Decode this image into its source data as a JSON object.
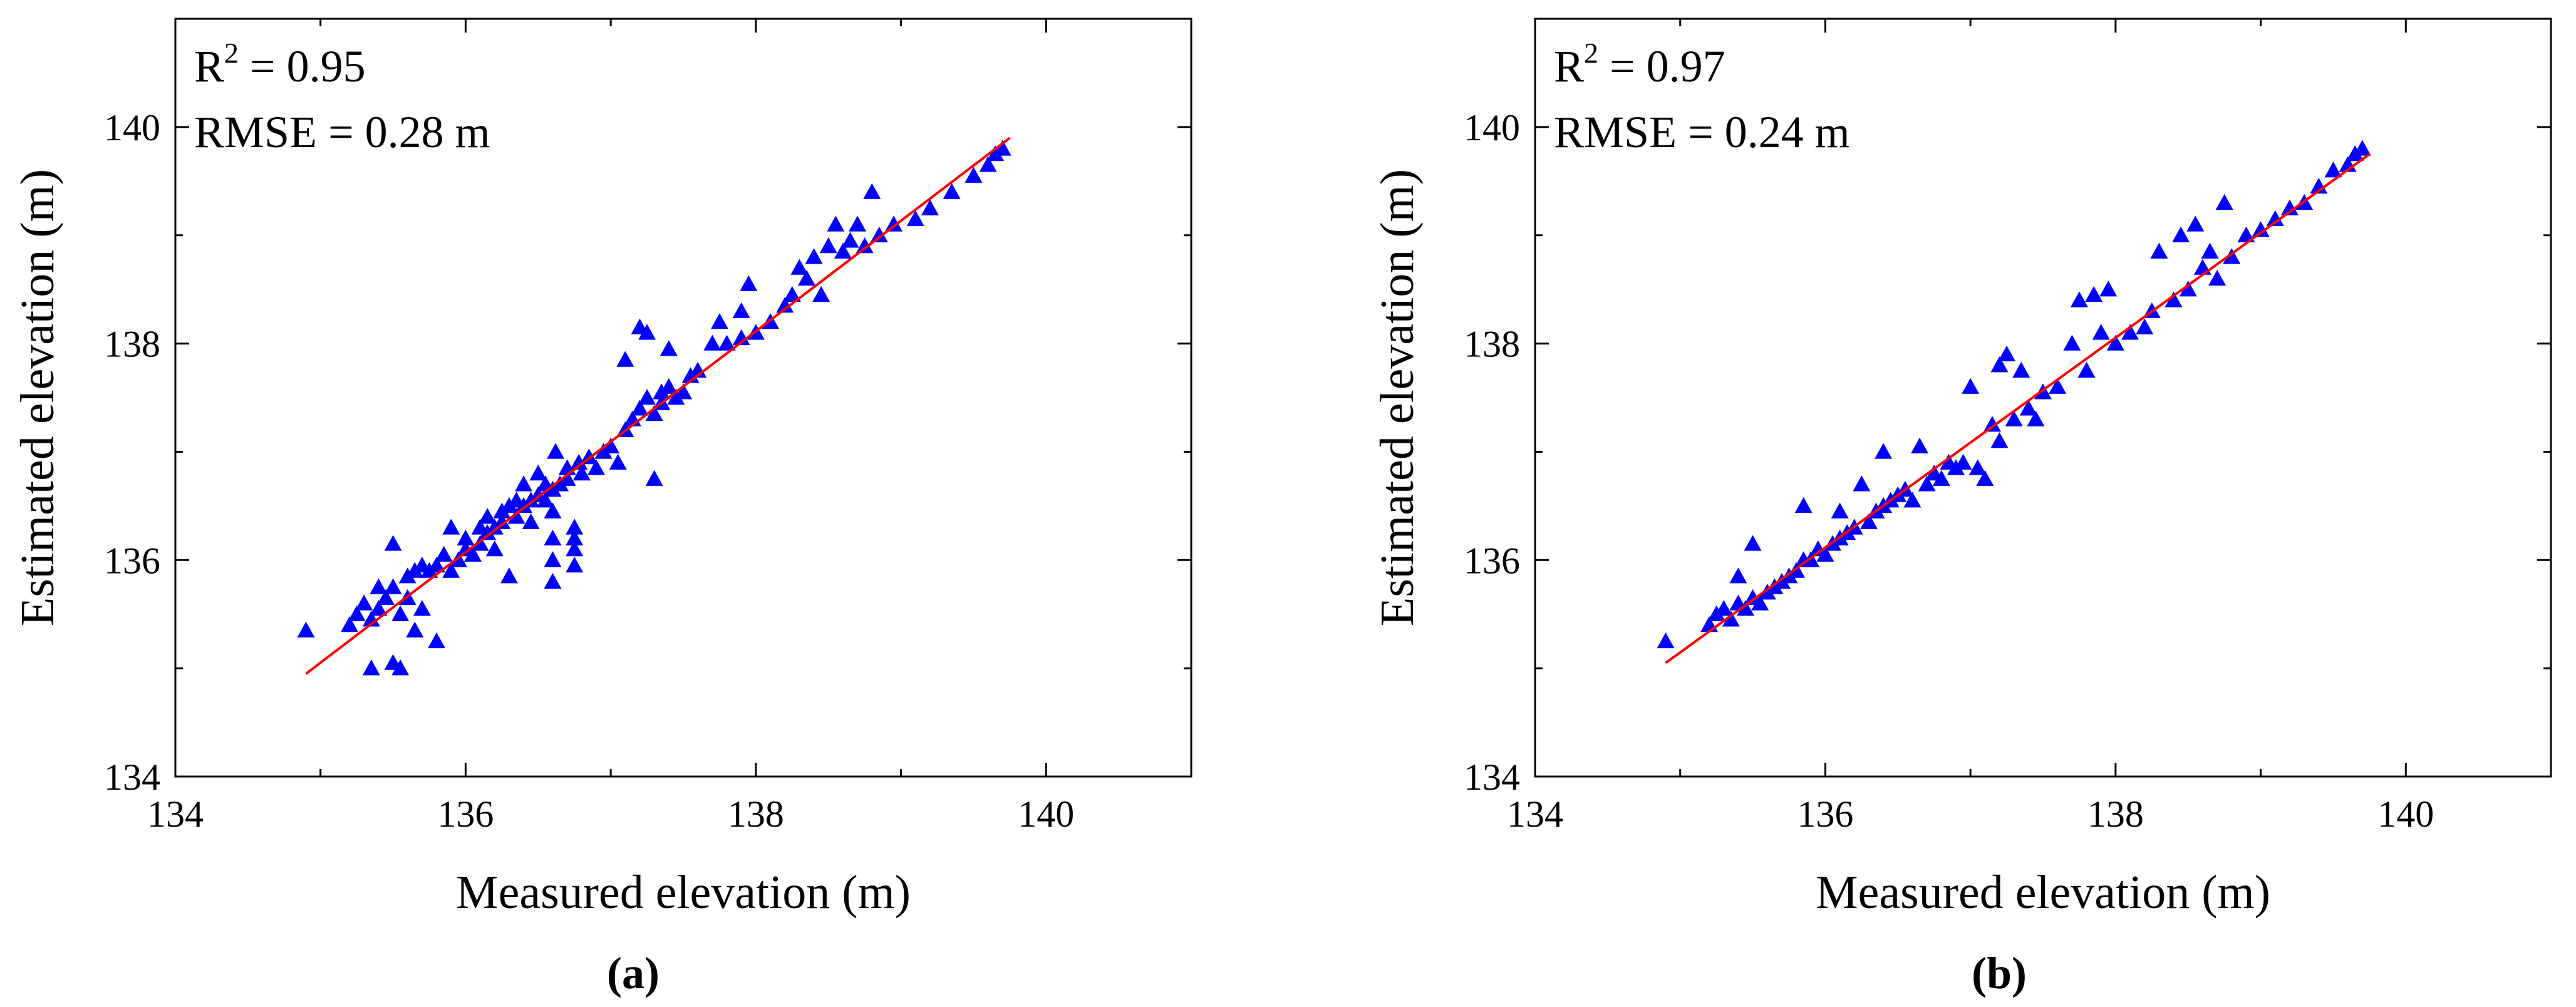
{
  "chart_data": [
    {
      "panel_label": "(a)",
      "type": "scatter",
      "xlabel": "Measured elevation (m)",
      "ylabel": "Estimated elevation (m)",
      "xlim": [
        134,
        141
      ],
      "ylim": [
        134,
        141
      ],
      "xticks": [
        134,
        136,
        138,
        140
      ],
      "yticks": [
        134,
        136,
        138,
        140
      ],
      "stats": {
        "r2_prefix": "R",
        "r2_sup": "2",
        "r2_value": " = 0.95",
        "rmse": "RMSE = 0.28 m"
      },
      "marker_color": "#0000ff",
      "fit_color": "#ff0000",
      "fit_line": {
        "x": [
          134.9,
          139.75
        ],
        "y": [
          134.95,
          139.9
        ]
      },
      "points": [
        [
          134.9,
          135.35
        ],
        [
          135.2,
          135.4
        ],
        [
          135.25,
          135.5
        ],
        [
          135.3,
          135.6
        ],
        [
          135.35,
          135.0
        ],
        [
          135.35,
          135.45
        ],
        [
          135.4,
          135.75
        ],
        [
          135.4,
          135.55
        ],
        [
          135.45,
          135.65
        ],
        [
          135.5,
          136.15
        ],
        [
          135.5,
          135.05
        ],
        [
          135.5,
          135.75
        ],
        [
          135.55,
          135.0
        ],
        [
          135.55,
          135.5
        ],
        [
          135.6,
          135.65
        ],
        [
          135.6,
          135.85
        ],
        [
          135.65,
          135.35
        ],
        [
          135.65,
          135.9
        ],
        [
          135.7,
          135.55
        ],
        [
          135.7,
          135.95
        ],
        [
          135.75,
          135.9
        ],
        [
          135.8,
          135.25
        ],
        [
          135.8,
          135.95
        ],
        [
          135.85,
          136.05
        ],
        [
          135.9,
          136.3
        ],
        [
          135.9,
          135.9
        ],
        [
          135.95,
          136.0
        ],
        [
          136.0,
          136.1
        ],
        [
          136.0,
          136.2
        ],
        [
          136.05,
          136.05
        ],
        [
          136.1,
          136.15
        ],
        [
          136.1,
          136.3
        ],
        [
          136.15,
          136.25
        ],
        [
          136.15,
          136.4
        ],
        [
          136.2,
          136.3
        ],
        [
          136.2,
          136.1
        ],
        [
          136.25,
          136.45
        ],
        [
          136.25,
          136.35
        ],
        [
          136.3,
          136.5
        ],
        [
          136.3,
          135.85
        ],
        [
          136.35,
          136.4
        ],
        [
          136.35,
          136.55
        ],
        [
          136.4,
          136.5
        ],
        [
          136.4,
          136.7
        ],
        [
          136.45,
          136.55
        ],
        [
          136.45,
          136.35
        ],
        [
          136.5,
          136.6
        ],
        [
          136.5,
          136.8
        ],
        [
          136.55,
          136.55
        ],
        [
          136.55,
          136.7
        ],
        [
          136.6,
          136.65
        ],
        [
          136.6,
          136.2
        ],
        [
          136.6,
          136.0
        ],
        [
          136.6,
          135.8
        ],
        [
          136.6,
          136.45
        ],
        [
          136.62,
          137.0
        ],
        [
          136.65,
          136.7
        ],
        [
          136.7,
          136.75
        ],
        [
          136.7,
          136.85
        ],
        [
          136.75,
          136.3
        ],
        [
          136.75,
          136.1
        ],
        [
          136.75,
          135.95
        ],
        [
          136.75,
          136.2
        ],
        [
          136.78,
          136.9
        ],
        [
          136.8,
          136.8
        ],
        [
          136.85,
          136.95
        ],
        [
          136.9,
          136.85
        ],
        [
          136.95,
          137.0
        ],
        [
          137.0,
          137.05
        ],
        [
          137.05,
          136.9
        ],
        [
          137.1,
          137.2
        ],
        [
          137.1,
          137.85
        ],
        [
          137.15,
          137.3
        ],
        [
          137.2,
          138.15
        ],
        [
          137.2,
          137.4
        ],
        [
          137.25,
          137.5
        ],
        [
          137.25,
          138.1
        ],
        [
          137.3,
          137.35
        ],
        [
          137.3,
          136.75
        ],
        [
          137.35,
          137.55
        ],
        [
          137.35,
          137.45
        ],
        [
          137.4,
          137.6
        ],
        [
          137.4,
          137.95
        ],
        [
          137.45,
          137.5
        ],
        [
          137.5,
          137.55
        ],
        [
          137.55,
          137.7
        ],
        [
          137.6,
          137.75
        ],
        [
          137.7,
          138.0
        ],
        [
          137.75,
          138.2
        ],
        [
          137.8,
          138.0
        ],
        [
          137.9,
          138.3
        ],
        [
          137.9,
          138.05
        ],
        [
          137.95,
          138.55
        ],
        [
          138.0,
          138.1
        ],
        [
          138.1,
          138.2
        ],
        [
          138.2,
          138.35
        ],
        [
          138.25,
          138.45
        ],
        [
          138.3,
          138.7
        ],
        [
          138.35,
          138.6
        ],
        [
          138.4,
          138.8
        ],
        [
          138.45,
          138.45
        ],
        [
          138.5,
          138.9
        ],
        [
          138.55,
          139.1
        ],
        [
          138.6,
          138.85
        ],
        [
          138.65,
          138.95
        ],
        [
          138.7,
          139.1
        ],
        [
          138.75,
          138.9
        ],
        [
          138.8,
          139.4
        ],
        [
          138.85,
          139.0
        ],
        [
          138.95,
          139.1
        ],
        [
          139.1,
          139.15
        ],
        [
          139.2,
          139.25
        ],
        [
          139.35,
          139.4
        ],
        [
          139.5,
          139.55
        ],
        [
          139.6,
          139.65
        ],
        [
          139.65,
          139.75
        ],
        [
          139.7,
          139.8
        ]
      ]
    },
    {
      "panel_label": "(b)",
      "type": "scatter",
      "xlabel": "Measured elevation (m)",
      "ylabel": "Estimated elevation (m)",
      "xlim": [
        134,
        141
      ],
      "ylim": [
        134,
        141
      ],
      "xticks": [
        134,
        136,
        138,
        140
      ],
      "yticks": [
        134,
        136,
        138,
        140
      ],
      "stats": {
        "r2_prefix": "R",
        "r2_sup": "2",
        "r2_value": " = 0.97",
        "rmse": "RMSE = 0.24 m"
      },
      "marker_color": "#0000ff",
      "fit_color": "#ff0000",
      "fit_line": {
        "x": [
          134.9,
          139.75
        ],
        "y": [
          135.05,
          139.75
        ]
      },
      "points": [
        [
          134.9,
          135.25
        ],
        [
          135.2,
          135.4
        ],
        [
          135.25,
          135.5
        ],
        [
          135.3,
          135.55
        ],
        [
          135.35,
          135.45
        ],
        [
          135.4,
          135.85
        ],
        [
          135.4,
          135.6
        ],
        [
          135.45,
          135.55
        ],
        [
          135.5,
          136.15
        ],
        [
          135.5,
          135.65
        ],
        [
          135.55,
          135.6
        ],
        [
          135.6,
          135.7
        ],
        [
          135.65,
          135.75
        ],
        [
          135.7,
          135.8
        ],
        [
          135.75,
          135.85
        ],
        [
          135.8,
          135.9
        ],
        [
          135.85,
          136.5
        ],
        [
          135.85,
          136.0
        ],
        [
          135.9,
          136.0
        ],
        [
          135.95,
          136.1
        ],
        [
          136.0,
          136.05
        ],
        [
          136.05,
          136.15
        ],
        [
          136.1,
          136.45
        ],
        [
          136.1,
          136.2
        ],
        [
          136.15,
          136.25
        ],
        [
          136.2,
          136.3
        ],
        [
          136.25,
          136.7
        ],
        [
          136.3,
          136.35
        ],
        [
          136.35,
          136.45
        ],
        [
          136.4,
          137.0
        ],
        [
          136.4,
          136.5
        ],
        [
          136.45,
          136.55
        ],
        [
          136.5,
          136.6
        ],
        [
          136.55,
          136.65
        ],
        [
          136.6,
          136.55
        ],
        [
          136.65,
          137.05
        ],
        [
          136.7,
          136.7
        ],
        [
          136.75,
          136.8
        ],
        [
          136.8,
          136.75
        ],
        [
          136.85,
          136.9
        ],
        [
          136.9,
          136.85
        ],
        [
          136.95,
          136.9
        ],
        [
          137.0,
          137.6
        ],
        [
          137.05,
          136.85
        ],
        [
          137.1,
          136.75
        ],
        [
          137.15,
          137.25
        ],
        [
          137.2,
          137.8
        ],
        [
          137.2,
          137.1
        ],
        [
          137.25,
          137.9
        ],
        [
          137.3,
          137.3
        ],
        [
          137.35,
          137.75
        ],
        [
          137.4,
          137.4
        ],
        [
          137.45,
          137.3
        ],
        [
          137.5,
          137.55
        ],
        [
          137.6,
          137.6
        ],
        [
          137.7,
          138.0
        ],
        [
          137.75,
          138.4
        ],
        [
          137.8,
          137.75
        ],
        [
          137.85,
          138.45
        ],
        [
          137.9,
          138.1
        ],
        [
          137.95,
          138.5
        ],
        [
          138.0,
          138.0
        ],
        [
          138.1,
          138.1
        ],
        [
          138.2,
          138.15
        ],
        [
          138.25,
          138.3
        ],
        [
          138.3,
          138.85
        ],
        [
          138.4,
          138.4
        ],
        [
          138.45,
          139.0
        ],
        [
          138.5,
          138.5
        ],
        [
          138.55,
          139.1
        ],
        [
          138.6,
          138.7
        ],
        [
          138.65,
          138.85
        ],
        [
          138.7,
          138.6
        ],
        [
          138.75,
          139.3
        ],
        [
          138.8,
          138.8
        ],
        [
          138.9,
          139.0
        ],
        [
          139.0,
          139.05
        ],
        [
          139.1,
          139.15
        ],
        [
          139.2,
          139.25
        ],
        [
          139.3,
          139.3
        ],
        [
          139.4,
          139.45
        ],
        [
          139.5,
          139.6
        ],
        [
          139.6,
          139.65
        ],
        [
          139.65,
          139.75
        ],
        [
          139.7,
          139.8
        ]
      ]
    }
  ]
}
